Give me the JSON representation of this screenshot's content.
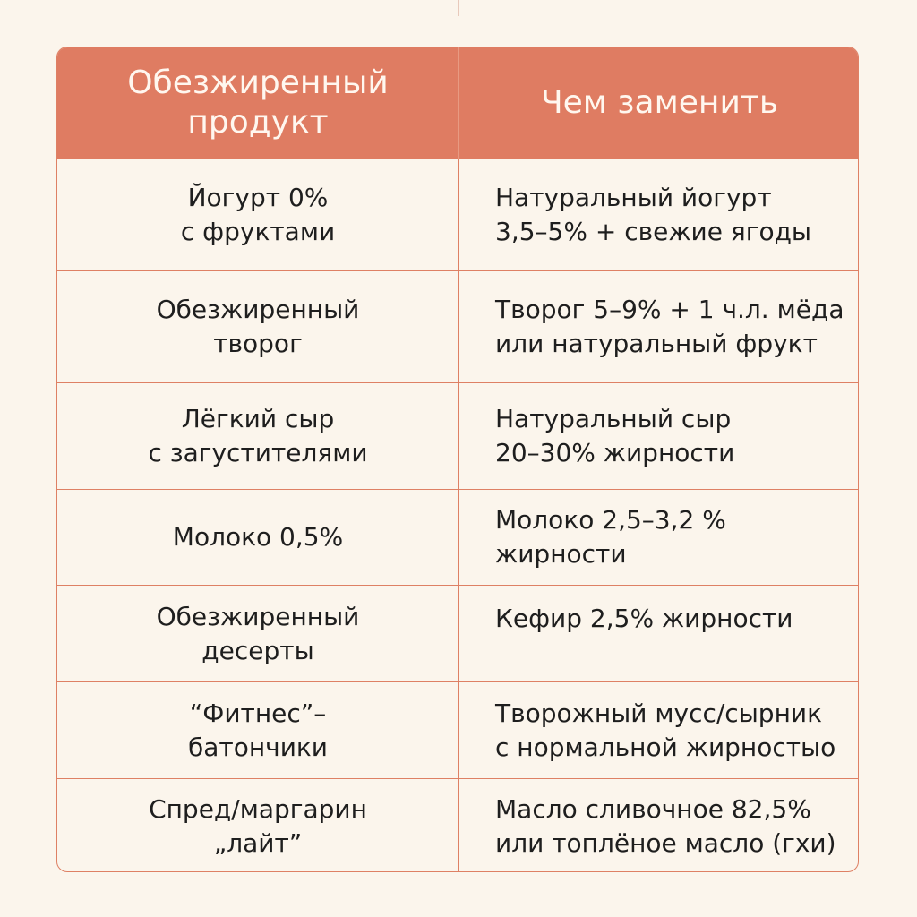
{
  "header": {
    "col1": [
      "Обезжиренный",
      "продукт"
    ],
    "col2": [
      "Чем заменить"
    ]
  },
  "rows": [
    {
      "product": [
        "Йогурт 0%",
        "с фруктами"
      ],
      "replacement": [
        "Натуральный йогурт",
        "3,5–5% + свежие ягоды"
      ]
    },
    {
      "product": [
        "Обезжиренный",
        "творог"
      ],
      "replacement": [
        "Творог 5–9% + 1 ч.л. мёда",
        "или натуральный фрукт"
      ]
    },
    {
      "product": [
        "Лёгкий сыр",
        "с загустителями"
      ],
      "replacement": [
        "Натуральный сыр",
        "20–30% жирности"
      ]
    },
    {
      "product": [
        "Молоко 0,5%"
      ],
      "replacement": [
        "Молоко 2,5–3,2 %",
        "жирности"
      ]
    },
    {
      "product": [
        "Обезжиренный",
        "десерты"
      ],
      "replacement": [
        "Кефир 2,5% жирности"
      ]
    },
    {
      "product": [
        "“Фитнес”–",
        "батончики"
      ],
      "replacement": [
        "Творожный мусс/сырник",
        "с нормальной жирностыо"
      ]
    },
    {
      "product": [
        "Спред/маргарин",
        "„лайт”"
      ],
      "replacement": [
        "Масло сливочное 82,5%",
        "или топлёное масло (гхи)"
      ]
    }
  ]
}
